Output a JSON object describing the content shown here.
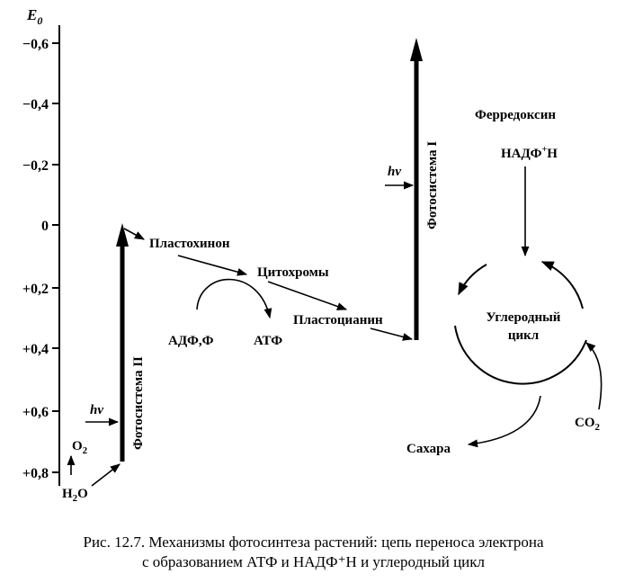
{
  "axis": {
    "label": "E",
    "label_sub": "0",
    "ticks": [
      "−0,6",
      "−0,4",
      "−0,2",
      "0",
      "+0,2",
      "+0,4",
      "+0,6",
      "+0,8"
    ]
  },
  "labels": {
    "photosystem2": "Фотосистема II",
    "photosystem1": "Фотосистема I",
    "hv": "hv",
    "plastoquinone": "Пластохинон",
    "cytochromes": "Цитохромы",
    "plastocyanin": "Пластоцианин",
    "adp": "АДФ,Ф",
    "atp": "АТФ",
    "ferredoxin": "Ферредоксин",
    "nadph": "НАДФ",
    "nadph_sup": "+",
    "nadph_end": "Н",
    "cycle_line1": "Углеродный",
    "cycle_line2": "цикл",
    "sugars": "Сахара",
    "co2": "CO",
    "co2_sub": "2",
    "o2": "O",
    "o2_sub": "2",
    "h2o_h": "H",
    "h2o_sub": "2",
    "h2o_o": "O"
  },
  "caption": {
    "line1": "Рис. 12.7. Механизмы фотосинтеза растений: цепь переноса электрона",
    "line2": "с образованием АТФ и НАДФ⁺Н и углеродный цикл"
  }
}
